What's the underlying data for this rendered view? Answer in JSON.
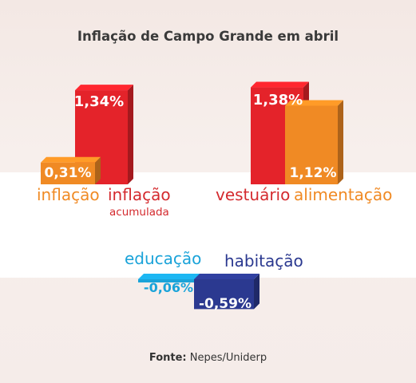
{
  "chart_data": {
    "type": "bar",
    "title": "Inflação de Campo Grande em abril",
    "source_label": "Fonte:",
    "source_value": "Nepes/Uniderp",
    "categories": [
      {
        "label": "inflação",
        "sublabel": "",
        "value": 0.31,
        "display": "0,31%",
        "color": "#f08a24"
      },
      {
        "label": "inflação",
        "sublabel": "acumulada",
        "value": 1.34,
        "display": "1,34%",
        "color": "#e4232a"
      },
      {
        "label": "vestuário",
        "sublabel": "",
        "value": 1.38,
        "display": "1,38%",
        "color": "#e4232a"
      },
      {
        "label": "alimentação",
        "sublabel": "",
        "value": 1.12,
        "display": "1,12%",
        "color": "#f08a24"
      },
      {
        "label": "educação",
        "sublabel": "",
        "value": -0.06,
        "display": "-0,06%",
        "color": "#1aa3d9"
      },
      {
        "label": "habitação",
        "sublabel": "",
        "value": -0.59,
        "display": "-0,59%",
        "color": "#2b3990"
      }
    ]
  }
}
